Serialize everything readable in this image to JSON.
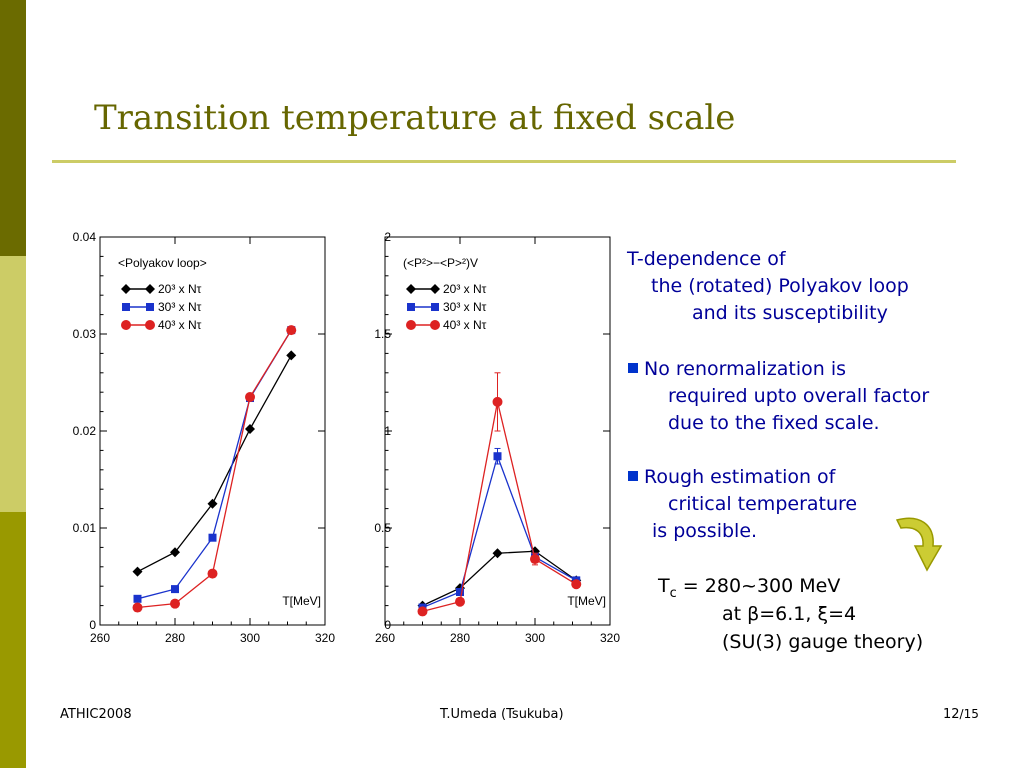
{
  "title": "Transition temperature at fixed scale",
  "bullets": {
    "intro_1": "T-dependence of",
    "intro_2": "the (rotated) Polyakov loop",
    "intro_3": "and its susceptibility",
    "b1_1": "No renormalization is",
    "b1_2": "required upto overall factor",
    "b1_3": "due to the fixed scale.",
    "b2_1": "Rough estimation of",
    "b2_2": "critical temperature",
    "b2_3": "is possible."
  },
  "result": {
    "tc_symbol": "T",
    "tc_sub": "c",
    "tc_value": " = 280~300 MeV",
    "line2": "at β=6.1, ξ=4",
    "line3": "(SU(3) gauge theory)"
  },
  "footer": {
    "left": "ATHIC2008",
    "center": "T.Umeda (Tsukuba)",
    "page": "12",
    "total": "/15"
  },
  "colors": {
    "sidebar_dark": "#6b6b00",
    "sidebar_light": "#cccc66",
    "sidebar_mid": "#999900",
    "title": "#666600",
    "body_text": "#000099",
    "bullet": "#0033cc",
    "arrow": "#cccc33"
  },
  "chart_data": [
    {
      "type": "line",
      "title": "<Polyakov loop>",
      "xlabel": "T[MeV]",
      "xlim": [
        260,
        320
      ],
      "ylim": [
        0,
        0.04
      ],
      "xticks": [
        260,
        280,
        300,
        320
      ],
      "yticks": [
        0,
        0.01,
        0.02,
        0.03,
        0.04
      ],
      "ytick_labels": [
        "0",
        "0.01",
        "0.02",
        "0.03",
        "0.04"
      ],
      "legend_position": "top-left",
      "series": [
        {
          "name": "20³ x Nτ",
          "color": "#000000",
          "marker": "diamond",
          "x": [
            270,
            280,
            290,
            300,
            311
          ],
          "y": [
            0.0055,
            0.0075,
            0.0125,
            0.0202,
            0.0278
          ]
        },
        {
          "name": "30³ x Nτ",
          "color": "#1a33cc",
          "marker": "square",
          "x": [
            270,
            280,
            290,
            300,
            311
          ],
          "y": [
            0.0027,
            0.0037,
            0.009,
            0.0234,
            0.0304
          ]
        },
        {
          "name": "40³ x Nτ",
          "color": "#dd2222",
          "marker": "circle",
          "x": [
            270,
            280,
            290,
            300,
            311
          ],
          "y": [
            0.0018,
            0.0022,
            0.0053,
            0.0235,
            0.0304
          ]
        }
      ]
    },
    {
      "type": "line",
      "title": "(<P²>−<P>²)V",
      "xlabel": "T[MeV]",
      "xlim": [
        260,
        320
      ],
      "ylim": [
        0,
        2
      ],
      "xticks": [
        260,
        280,
        300,
        320
      ],
      "yticks": [
        0,
        0.5,
        1,
        1.5,
        2
      ],
      "ytick_labels": [
        "0",
        "0.5",
        "1",
        "1.5",
        "2"
      ],
      "legend_position": "top-left",
      "series": [
        {
          "name": "20³ x Nτ",
          "color": "#000000",
          "marker": "diamond",
          "x": [
            270,
            280,
            290,
            300,
            311
          ],
          "y": [
            0.1,
            0.19,
            0.37,
            0.38,
            0.23
          ]
        },
        {
          "name": "30³ x Nτ",
          "color": "#1a33cc",
          "marker": "square",
          "x": [
            270,
            280,
            290,
            300,
            311
          ],
          "y": [
            0.09,
            0.17,
            0.87,
            0.35,
            0.23
          ],
          "err": [
            0,
            0,
            0.04,
            0.02,
            0
          ]
        },
        {
          "name": "40³ x Nτ",
          "color": "#dd2222",
          "marker": "circle",
          "x": [
            270,
            280,
            290,
            300,
            311
          ],
          "y": [
            0.07,
            0.12,
            1.15,
            0.34,
            0.21
          ],
          "err": [
            0,
            0,
            0.15,
            0.03,
            0
          ]
        }
      ]
    }
  ]
}
